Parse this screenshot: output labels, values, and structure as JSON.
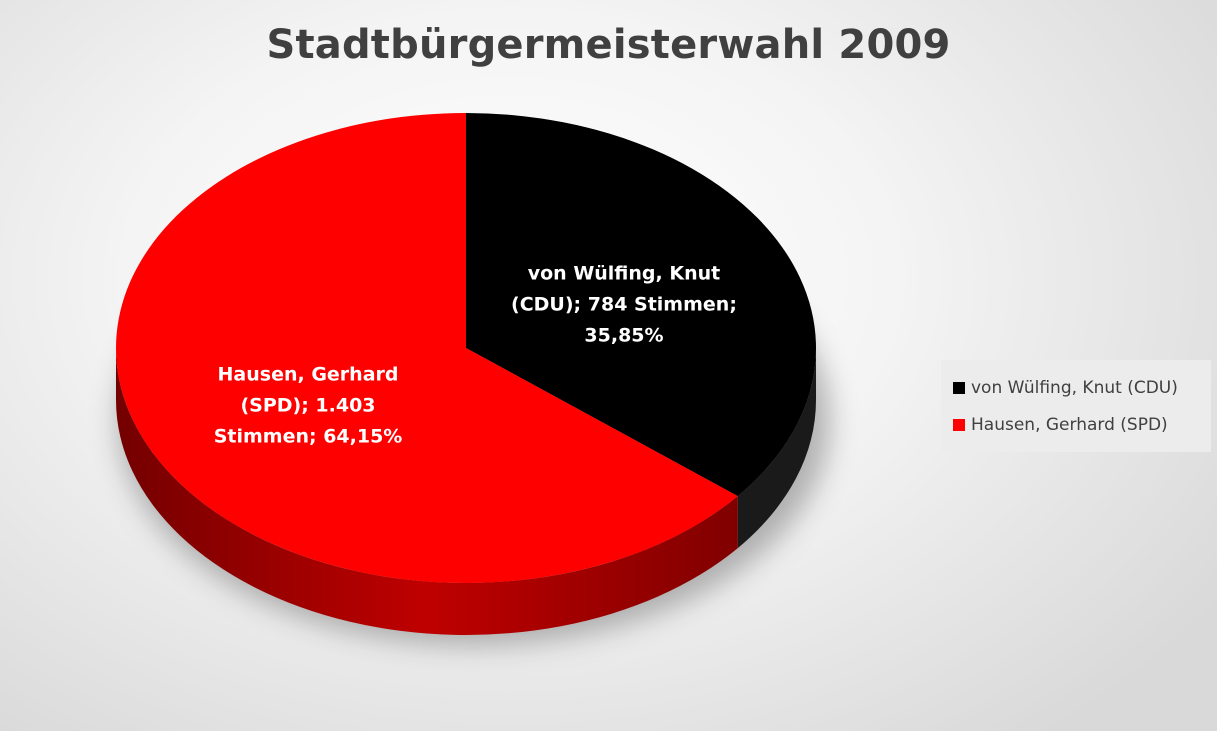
{
  "chart_data": {
    "type": "pie",
    "title": "Stadtbürgermeisterwahl 2009",
    "legend_position": "right",
    "slices": [
      {
        "name": "von Wülfing, Knut (CDU)",
        "votes": 784,
        "percent": 35.85,
        "color": "#000000",
        "label_lines": [
          "von Wülfing, Knut",
          "(CDU); 784 Stimmen;",
          "35,85%"
        ]
      },
      {
        "name": "Hausen, Gerhard (SPD)",
        "votes": 1403,
        "percent": 64.15,
        "color": "#ff0000",
        "label_lines": [
          "Hausen, Gerhard",
          "(SPD); 1.403",
          "Stimmen; 64,15%"
        ]
      }
    ]
  }
}
